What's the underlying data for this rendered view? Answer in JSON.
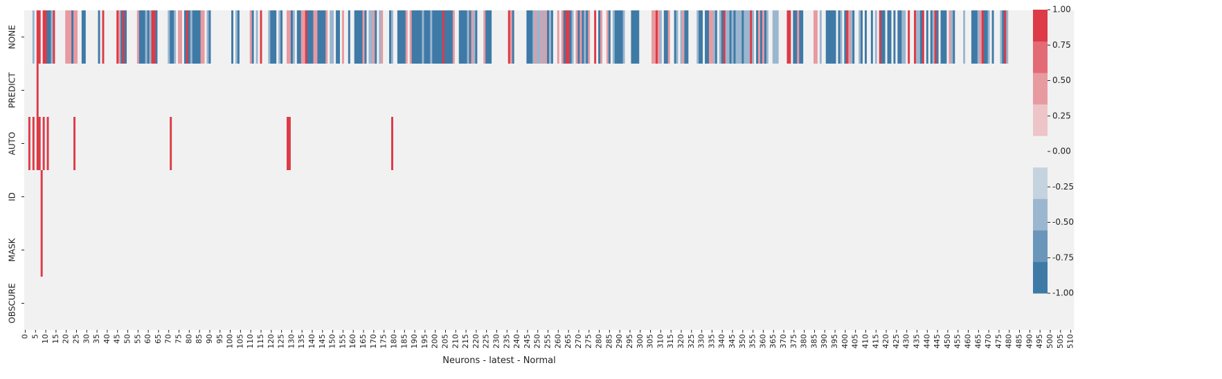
{
  "chart_data": {
    "type": "heatmap",
    "rows": [
      "NONE",
      "PREDICT",
      "AUTO",
      "ID",
      "MASK",
      "OBSCURE"
    ],
    "x_start": 0,
    "x_end": 511,
    "x_tick_step": 5,
    "xlabel": "Neurons - latest - Normal",
    "ylabel": "",
    "title": "",
    "colorbar": {
      "min": -1.0,
      "max": 1.0,
      "ticks": [
        "1.00",
        "0.75",
        "0.50",
        "0.25",
        "0.00",
        "-0.25",
        "-0.50",
        "-0.75",
        "-1.00"
      ],
      "levels": [
        -1.0,
        -0.75,
        -0.5,
        -0.25,
        0.0,
        0.25,
        0.5,
        0.75,
        1.0
      ],
      "colors": [
        "#3f7aa7",
        "#6a96bb",
        "#9bb6cf",
        "#c5d3df",
        "#f1f1f1",
        "#edc4c8",
        "#e89aa1",
        "#e36b75",
        "#dc3b47"
      ]
    },
    "values": [
      "000010440442214000003332330022000000204000000432420000032221214420000012210330242122223301200000000002012000003201040001222012003321022334222332222301102203002002222320113201300021002222303222221222122222422223002222123120003222000000004320000002221311313212003032442103232123004023003201222210002222000000334310223002101322000012202233120124112121112111410232321001110000440223220000033010022222021024312001202002010422022020221104004112402021420222031200001000222134221020001241",
      "000000400000000000000000000000000000000000000000000000000000000000000000000000000000000000000000000000000000000000000000000000000000000000000000000000000000000000000000000000000000000000000000000000000000000000000000000000000000000000000000000000000000000000000000000000000000000000000000000000000000000000000000000000000000000000000000000000000000000000000000000000000000000000000000000000000000000000000000000000000000000000000000000000000000000000000000000000000000000000000000000",
      "004040440404000000000000400000000000000000000000000000000000000000000004000000000000000000000000000000000000000000000000000000004400000000000000000000000000000000000000000000000004000000000000000000000000000000000000000000000000000000000000000000000000000000000000000000000000000000000000000000000000000000000000000000000000000000000000000000000000000000000000000000000000000000000000000000000000000000000000000000000000000000000000000000000000000000000000000000000000000000000000000",
      "000000004000000000000000000000000000000000000000000000000000000000000000000000000000000000000000000000000000000000000000000000000000000000000000000000000000000000000000000000000000000000000000000000000000000000000000000000000000000000000000000000000000000000000000000000000000000000000000000000000000000000000000000000000000000000000000000000000000000000000000000000000000000000000000000000000000000000000000000000000000000000000000000000000000000000000000000000000000000000000000000",
      "000000004000000000000000000000000000000000000000000000000000000000000000000000000000000000000000000000000000000000000000000000000000000000000000000000000000000000000000000000000000000000000000000000000000000000000000000000000000000000000000000000000000000000000000000000000000000000000000000000000000000000000000000000000000000000000000000000000000000000000000000000000000000000000000000000000000000000000000000000000000000000000000000000000000000000000000000000000000000000000000000",
      "000000000000000000000000000000000000000000000000000000000000000000000000000000000000000000000000000000000000000000000000000000000000000000000000000000000000000000000000000000000000000000000000000000000000000000000000000000000000000000000000000000000000000000000000000000000000000000000000000000000000000000000000000000000000000000000000000000000000000000000000000000000000000000000000000000000000000000000000000000000000000000000000000000000000000000000000000000000000000000000000000"
    ]
  }
}
